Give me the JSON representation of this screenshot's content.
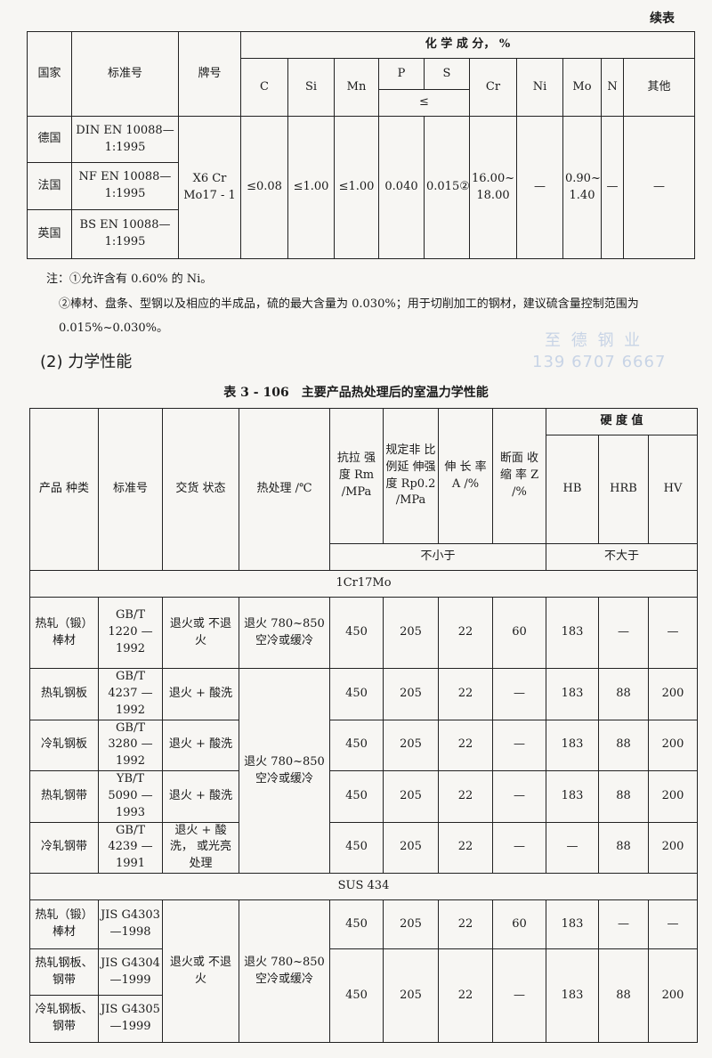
{
  "continued": "续表",
  "table1": {
    "h_country": "国家",
    "h_standard": "标准号",
    "h_grade": "牌号",
    "h_chem": "化 学 成 分， %",
    "h_cols": {
      "C": "C",
      "Si": "Si",
      "Mn": "Mn",
      "P": "P",
      "S": "S",
      "le": "≤",
      "Cr": "Cr",
      "Ni": "Ni",
      "Mo": "Mo",
      "N": "N",
      "other": "其他"
    },
    "rows": [
      {
        "country": "德国",
        "standard": "DIN EN 10088—1:1995"
      },
      {
        "country": "法国",
        "standard": "NF EN 10088—1:1995"
      },
      {
        "country": "英国",
        "standard": "BS EN 10088—1:1995"
      }
    ],
    "shared": {
      "grade": "X6 Cr Mo17 - 1",
      "C": "≤0.08",
      "Si": "≤1.00",
      "Mn": "≤1.00",
      "P": "0.040",
      "S": "0.015②",
      "Cr": "16.00~ 18.00",
      "Ni": "—",
      "Mo": "0.90~ 1.40",
      "N": "—",
      "other": "—"
    }
  },
  "notes": [
    "注：①允许含有 0.60% 的 Ni。",
    "②棒材、盘条、型钢以及相应的半成品，硫的最大含量为 0.030%；用于切削加工的钢材，建议硫含量控制范围为",
    "0.015%~0.030%。"
  ],
  "section_title": "(2) 力学性能",
  "watermark": {
    "name": "至 德 钢 业",
    "phone": "139 6707 6667"
  },
  "table2": {
    "caption": "表 3 - 106　主要产品热处理后的室温力学性能",
    "h": {
      "product": "产品 种类",
      "standard": "标准号",
      "delivery": "交货 状态",
      "heat": "热处理 /℃",
      "rm": "抗拉 强度 Rm /MPa",
      "rp": "规定非 比例延 伸强度 Rp0.2 /MPa",
      "a": "伸 长 率 A /%",
      "z": "断面 收缩 率 Z /%",
      "hard": "硬 度 值",
      "hb": "HB",
      "hrb": "HRB",
      "hv": "HV",
      "min": "不小于",
      "max": "不大于"
    },
    "groups": [
      {
        "grade": "1Cr17Mo",
        "rows": [
          {
            "product": "热轧（锻）棒材",
            "standard": "GB/T 1220 —1992",
            "delivery": "退火或 不退火",
            "heat": "退火 780~850 空冷或缓冷",
            "rm": "450",
            "rp": "205",
            "a": "22",
            "z": "60",
            "hb": "183",
            "hrb": "—",
            "hv": "—"
          },
          {
            "product": "热轧钢板",
            "standard": "GB/T 4237 —1992",
            "delivery": "退火 + 酸洗",
            "heat": "退火 780~850 空冷或缓冷",
            "rm": "450",
            "rp": "205",
            "a": "22",
            "z": "—",
            "hb": "183",
            "hrb": "88",
            "hv": "200"
          },
          {
            "product": "冷轧钢板",
            "standard": "GB/T 3280 —1992",
            "delivery": "退火 + 酸洗",
            "rm": "450",
            "rp": "205",
            "a": "22",
            "z": "—",
            "hb": "183",
            "hrb": "88",
            "hv": "200"
          },
          {
            "product": "热轧钢带",
            "standard": "YB/T 5090 —1993",
            "delivery": "退火 + 酸洗",
            "rm": "450",
            "rp": "205",
            "a": "22",
            "z": "—",
            "hb": "183",
            "hrb": "88",
            "hv": "200"
          },
          {
            "product": "冷轧钢带",
            "standard": "GB/T 4239 —1991",
            "delivery": "退火 + 酸洗， 或光亮处理",
            "rm": "450",
            "rp": "205",
            "a": "22",
            "z": "—",
            "hb": "—",
            "hrb": "88",
            "hv": "200"
          }
        ]
      },
      {
        "grade": "SUS 434",
        "rows": [
          {
            "product": "热轧（锻）棒材",
            "standard": "JIS G4303—1998",
            "delivery": "退火或 不退火",
            "heat": "退火 780~850 空冷或缓冷",
            "rm": "450",
            "rp": "205",
            "a": "22",
            "z": "60",
            "hb": "183",
            "hrb": "—",
            "hv": "—"
          },
          {
            "product": "热轧钢板、钢带",
            "standard": "JIS G4304—1999",
            "rm": "450",
            "rp": "205",
            "a": "22",
            "z": "—",
            "hb": "183",
            "hrb": "88",
            "hv": "200"
          },
          {
            "product": "冷轧钢板、钢带",
            "standard": "JIS G4305—1999"
          }
        ]
      }
    ]
  }
}
